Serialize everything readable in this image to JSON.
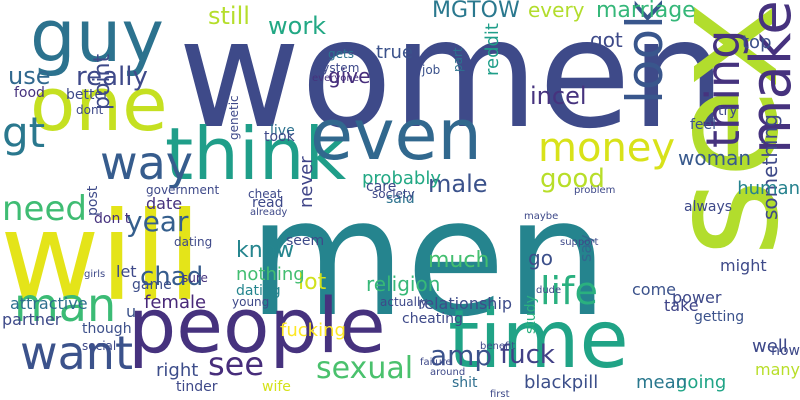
{
  "words": [
    {
      "text": "women",
      "color": "#3e4a89",
      "rot": 0
    },
    {
      "text": "men",
      "color": "#25848e",
      "rot": 0
    },
    {
      "text": "will",
      "color": "#e4e419",
      "rot": 0
    },
    {
      "text": "sex",
      "color": "#b2dd2d",
      "rot": 270
    },
    {
      "text": "people",
      "color": "#46327e",
      "rot": 0
    },
    {
      "text": "think",
      "color": "#1f9e89",
      "rot": 0
    },
    {
      "text": "one",
      "color": "#c5e021",
      "rot": 0
    },
    {
      "text": "even",
      "color": "#31688e",
      "rot": 0
    },
    {
      "text": "time",
      "color": "#20a386",
      "rot": 0
    },
    {
      "text": "guy",
      "color": "#2c728e",
      "rot": 0
    },
    {
      "text": "make",
      "color": "#46327e",
      "rot": 270
    },
    {
      "text": "money",
      "color": "#d8e219",
      "rot": 0
    },
    {
      "text": "want",
      "color": "#3b528b",
      "rot": 0
    },
    {
      "text": "way",
      "color": "#365c8d",
      "rot": 0
    },
    {
      "text": "man",
      "color": "#3bbb75",
      "rot": 0
    },
    {
      "text": "look",
      "color": "#39568c",
      "rot": 270
    },
    {
      "text": "life",
      "color": "#2ab07f",
      "rot": 0
    },
    {
      "text": "thing",
      "color": "#46337e",
      "rot": 270
    },
    {
      "text": "sexual",
      "color": "#4ac16d",
      "rot": 0
    },
    {
      "text": "gt",
      "color": "#2a788e",
      "rot": 0
    },
    {
      "text": "need",
      "color": "#3fbc73",
      "rot": 0
    },
    {
      "text": "year",
      "color": "#355f8d",
      "rot": 0
    },
    {
      "text": "good",
      "color": "#b8de29",
      "rot": 0
    },
    {
      "text": "really",
      "color": "#3e4989",
      "rot": 0
    },
    {
      "text": "see",
      "color": "#472d7b",
      "rot": 0
    },
    {
      "text": "amp",
      "color": "#3b528b",
      "rot": 0
    },
    {
      "text": "work",
      "color": "#22a884",
      "rot": 0
    },
    {
      "text": "still",
      "color": "#b5de2b",
      "rot": 0
    },
    {
      "text": "MGTOW",
      "color": "#2a788e",
      "rot": 0
    },
    {
      "text": "male",
      "color": "#3b528b",
      "rot": 0
    },
    {
      "text": "incel",
      "color": "#46337e",
      "rot": 0
    },
    {
      "text": "use",
      "color": "#31688e",
      "rot": 0
    },
    {
      "text": "fuck",
      "color": "#424086",
      "rot": 0
    },
    {
      "text": "relationship",
      "color": "#3e4c8a",
      "rot": 0
    },
    {
      "text": "chad",
      "color": "#365c8d",
      "rot": 0
    },
    {
      "text": "know",
      "color": "#25858e",
      "rot": 0
    },
    {
      "text": "woman",
      "color": "#38598c",
      "rot": 0
    },
    {
      "text": "marriage",
      "color": "#35b779",
      "rot": 0
    },
    {
      "text": "every",
      "color": "#b2dd2d",
      "rot": 0
    },
    {
      "text": "got",
      "color": "#3e4a89",
      "rot": 0
    },
    {
      "text": "female",
      "color": "#482878",
      "rot": 0
    },
    {
      "text": "lot",
      "color": "#d0e11c",
      "rot": 0
    },
    {
      "text": "point",
      "color": "#3e4a89",
      "rot": 270
    },
    {
      "text": "true",
      "color": "#3b528b",
      "rot": 0
    },
    {
      "text": "give",
      "color": "#472e7c",
      "rot": 0
    },
    {
      "text": "right",
      "color": "#3d4d8a",
      "rot": 0
    },
    {
      "text": "much",
      "color": "#44bf70",
      "rot": 0
    },
    {
      "text": "religion",
      "color": "#37b878",
      "rot": 0
    },
    {
      "text": "well",
      "color": "#3e4989",
      "rot": 0
    },
    {
      "text": "going",
      "color": "#20a486",
      "rot": 0
    },
    {
      "text": "mean",
      "color": "#2a788e",
      "rot": 0
    },
    {
      "text": "blackpill",
      "color": "#3c4f8a",
      "rot": 0
    },
    {
      "text": "partner",
      "color": "#3e4a89",
      "rot": 0
    },
    {
      "text": "nothing",
      "color": "#42be71",
      "rot": 0
    },
    {
      "text": "never",
      "color": "#404588",
      "rot": 270
    },
    {
      "text": "probably",
      "color": "#22a884",
      "rot": 0
    },
    {
      "text": "date",
      "color": "#46327e",
      "rot": 0
    },
    {
      "text": "top",
      "color": "#3c4f8a",
      "rot": 0
    },
    {
      "text": "said",
      "color": "#2c728e",
      "rot": 0
    },
    {
      "text": "shit",
      "color": "#2e6e8e",
      "rot": 0
    },
    {
      "text": "dating",
      "color": "#25858e",
      "rot": 0
    },
    {
      "text": "attractive",
      "color": "#2e6f8e",
      "rot": 0
    },
    {
      "text": "cheating",
      "color": "#3e4989",
      "rot": 0
    },
    {
      "text": "study",
      "color": "#2ab07f",
      "rot": 270
    },
    {
      "text": "fucking",
      "color": "#fde725",
      "rot": 0
    },
    {
      "text": "something",
      "color": "#3e4a89",
      "rot": 270
    },
    {
      "text": "human",
      "color": "#26828e",
      "rot": 0
    },
    {
      "text": "tinder",
      "color": "#3e4989",
      "rot": 0
    },
    {
      "text": "wife",
      "color": "#d5e21a",
      "rot": 0
    },
    {
      "text": "take",
      "color": "#404588",
      "rot": 0
    },
    {
      "text": "come",
      "color": "#3b528b",
      "rot": 0
    },
    {
      "text": "getting",
      "color": "#3b528b",
      "rot": 0
    },
    {
      "text": "reddit",
      "color": "#1f9e89",
      "rot": 270
    },
    {
      "text": "feel",
      "color": "#3b528b",
      "rot": 0
    },
    {
      "text": "many",
      "color": "#b8de29",
      "rot": 0
    },
    {
      "text": "now",
      "color": "#3e4989",
      "rot": 0
    },
    {
      "text": "might",
      "color": "#3e4a89",
      "rot": 0
    },
    {
      "text": "always",
      "color": "#3e4989",
      "rot": 0
    },
    {
      "text": "try",
      "color": "#3e4a89",
      "rot": 0
    },
    {
      "text": "say",
      "color": "#31688e",
      "rot": 270
    },
    {
      "text": "go",
      "color": "#3c4f8a",
      "rot": 0
    },
    {
      "text": "read",
      "color": "#3e4989",
      "rot": 0
    },
    {
      "text": "let",
      "color": "#3e4989",
      "rot": 0
    },
    {
      "text": "sure",
      "color": "#46327e",
      "rot": 0
    },
    {
      "text": "game",
      "color": "#3d4e8a",
      "rot": 0
    },
    {
      "text": "seem",
      "color": "#3e4a89",
      "rot": 0
    },
    {
      "text": "though",
      "color": "#3c4f8a",
      "rot": 0
    },
    {
      "text": "u",
      "color": "#3b528b",
      "rot": 0
    },
    {
      "text": "care",
      "color": "#3e4989",
      "rot": 0
    },
    {
      "text": "live",
      "color": "#2c728e",
      "rot": 0
    },
    {
      "text": "took",
      "color": "#3e4989",
      "rot": 0
    },
    {
      "text": "power",
      "color": "#3e4989",
      "rot": 0
    },
    {
      "text": "post",
      "color": "#3e4a89",
      "rot": 270
    },
    {
      "text": "gets",
      "color": "#2c728e",
      "rot": 0
    },
    {
      "text": "system",
      "color": "#3e4989",
      "rot": 0
    },
    {
      "text": "everyone",
      "color": "#46327e",
      "rot": 0
    },
    {
      "text": "job",
      "color": "#3b528b",
      "rot": 0
    },
    {
      "text": "part",
      "color": "#2c728e",
      "rot": 270
    },
    {
      "text": "genetic",
      "color": "#3e4989",
      "rot": 270
    },
    {
      "text": "dont",
      "color": "#3e4989",
      "rot": 0
    },
    {
      "text": "don t",
      "color": "#46327e",
      "rot": 0
    },
    {
      "text": "better",
      "color": "#3e4989",
      "rot": 0
    },
    {
      "text": "food",
      "color": "#46327e",
      "rot": 0
    },
    {
      "text": "government",
      "color": "#3e4989",
      "rot": 0
    },
    {
      "text": "cheat",
      "color": "#3e4989",
      "rot": 0
    },
    {
      "text": "society",
      "color": "#3e4989",
      "rot": 0
    },
    {
      "text": "maybe",
      "color": "#3e4989",
      "rot": 0
    },
    {
      "text": "problem",
      "color": "#3e4989",
      "rot": 0
    },
    {
      "text": "support",
      "color": "#3e4989",
      "rot": 0
    },
    {
      "text": "dude",
      "color": "#3e4989",
      "rot": 0
    },
    {
      "text": "benefit",
      "color": "#3e4989",
      "rot": 0
    },
    {
      "text": "first",
      "color": "#3e4989",
      "rot": 0
    },
    {
      "text": "social",
      "color": "#3e4989",
      "rot": 0
    },
    {
      "text": "actually",
      "color": "#3e4989",
      "rot": 0
    },
    {
      "text": "failure",
      "color": "#3e4989",
      "rot": 0
    },
    {
      "text": "around",
      "color": "#3e4989",
      "rot": 0
    },
    {
      "text": "young",
      "color": "#3e4989",
      "rot": 0
    },
    {
      "text": "already",
      "color": "#3e4989",
      "rot": 0
    },
    {
      "text": "girls",
      "color": "#3e4989",
      "rot": 0
    },
    {
      "text": "dating",
      "color": "#3e4989",
      "rot": 0
    }
  ]
}
